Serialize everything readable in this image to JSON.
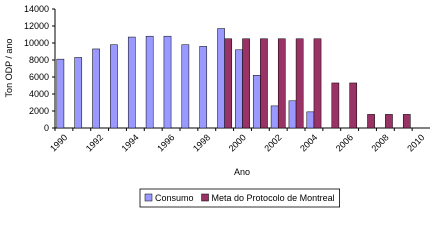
{
  "chart_data": {
    "type": "bar",
    "y_label": "Ton ODP / ano",
    "x_label": "Ano",
    "categories": [
      "1990",
      null,
      "1992",
      null,
      "1994",
      null,
      "1996",
      null,
      "1998",
      null,
      "2000",
      null,
      "2002",
      null,
      "2004",
      null,
      "2006",
      null,
      "2008",
      null,
      "2010"
    ],
    "series": [
      {
        "name": "Consumo",
        "color": "#9999ff",
        "values": [
          8100,
          8300,
          9300,
          9800,
          10700,
          10800,
          10800,
          9800,
          9600,
          11700,
          9200,
          6200,
          2600,
          3200,
          1900,
          null,
          null,
          null,
          null,
          null,
          null
        ]
      },
      {
        "name": "Meta do Protocolo de Montreal",
        "color": "#993366",
        "values": [
          null,
          null,
          null,
          null,
          null,
          null,
          null,
          null,
          null,
          10500,
          10500,
          10500,
          10500,
          10500,
          10500,
          5300,
          5300,
          1600,
          1600,
          1600,
          null
        ]
      }
    ],
    "ylim": [
      0,
      14000
    ],
    "yticks": [
      0,
      2000,
      4000,
      6000,
      8000,
      10000,
      12000,
      14000
    ],
    "legend": "bottom"
  }
}
